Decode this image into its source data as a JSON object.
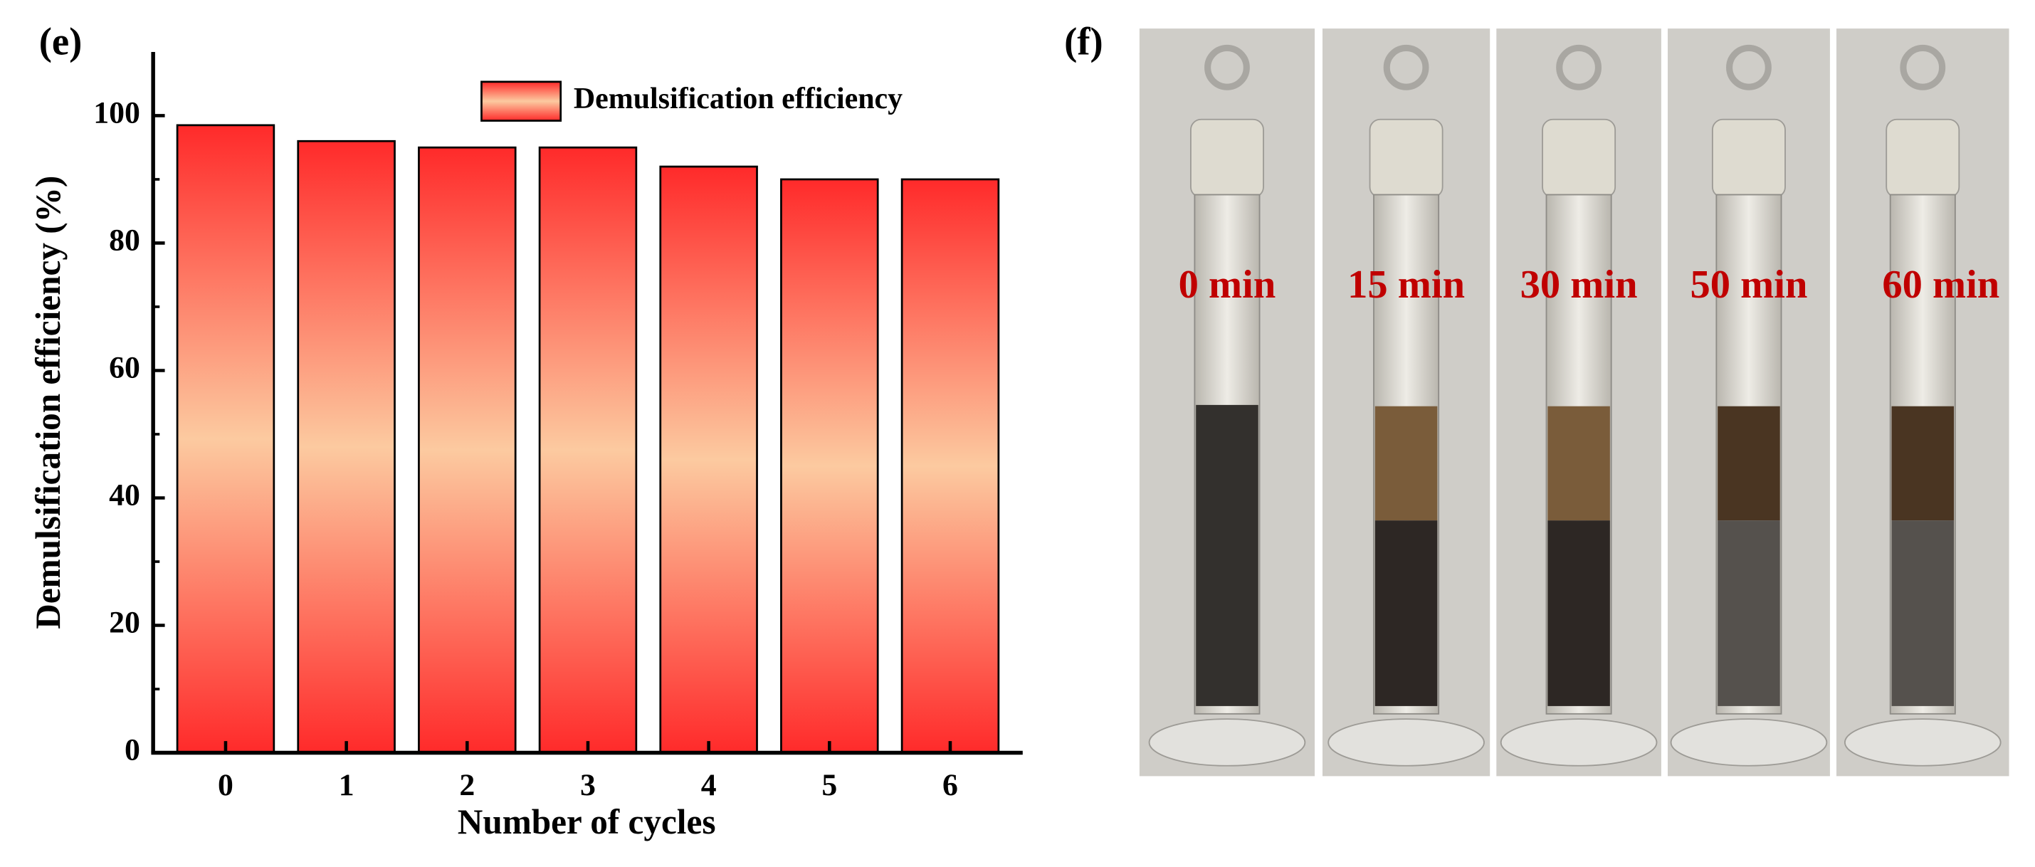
{
  "chart_data": {
    "type": "bar",
    "panel_label": "(e)",
    "x_label": "Number of cycles",
    "y_label": "Demulsification efficiency (%)",
    "x": [
      0,
      1,
      2,
      3,
      4,
      5,
      6
    ],
    "series": [
      {
        "name": "Demulsification efficiency",
        "color": "#ff2a2a",
        "values": [
          98.5,
          96,
          95,
          95,
          92,
          90,
          90
        ]
      }
    ],
    "xlim": [
      -0.6,
      6.6
    ],
    "ylim": [
      0,
      110
    ],
    "yticks": [
      0,
      20,
      40,
      60,
      80,
      100
    ],
    "legend": "upper right"
  },
  "photo": {
    "panel_label": "(f)",
    "times": [
      "0 min",
      "15 min",
      "30 min",
      "50 min",
      "60 min"
    ]
  }
}
